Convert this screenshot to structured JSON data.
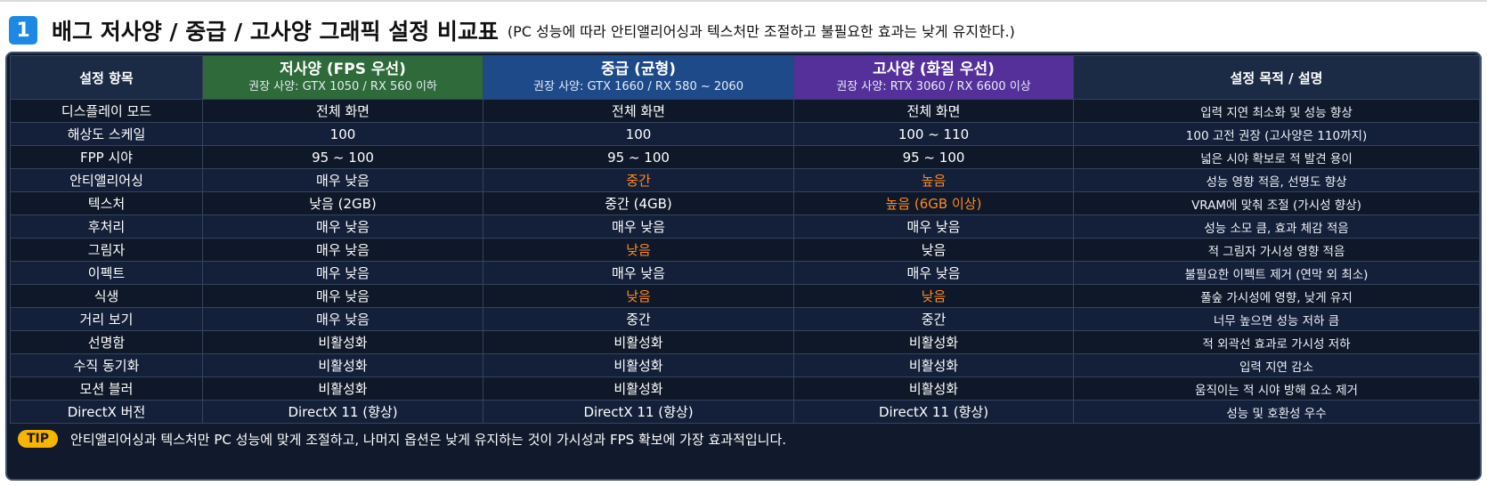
{
  "header": {
    "number": "1",
    "title": "배그 저사양 / 중급 / 고사양 그래픽 설정 비교표",
    "subtitle": "(PC 성능에 따라 안티앨리어싱과 텍스처만 조절하고 불필요한 효과는 낮게 유지한다.)"
  },
  "columns": {
    "item": "설정 항목",
    "low": {
      "title": "저사양 (FPS 우선)",
      "spec": "권장 사양: GTX 1050 / RX 560 이하"
    },
    "mid": {
      "title": "중급 (균형)",
      "spec": "권장 사양: GTX 1660 / RX 580 ~ 2060"
    },
    "high": {
      "title": "고사양 (화질 우선)",
      "spec": "권장 사양: RTX 3060 / RX 6600 이상"
    },
    "purpose": "설정 목적 / 설명"
  },
  "rows": [
    {
      "item": "디스플레이 모드",
      "low": "전체 화면",
      "mid": "전체 화면",
      "high": "전체 화면",
      "purpose": "입력 지연 최소화 및 성능 향상"
    },
    {
      "item": "해상도 스케일",
      "low": "100",
      "mid": "100",
      "high": "100 ~ 110",
      "purpose": "100 고전 권장 (고사양은 110까지)"
    },
    {
      "item": "FPP 시야",
      "low": "95 ~ 100",
      "mid": "95 ~ 100",
      "high": "95 ~ 100",
      "purpose": "넓은 시야 확보로 적 발견 용이"
    },
    {
      "item": "안티앨리어싱",
      "low": "매우 낮음",
      "mid": "중간",
      "high": "높음",
      "purpose": "성능 영향 적음, 선명도 향상"
    },
    {
      "item": "텍스처",
      "low": "낮음 (2GB)",
      "mid": "중간 (4GB)",
      "high": "높음 (6GB 이상)",
      "purpose": "VRAM에 맞춰 조절 (가시성 향상)"
    },
    {
      "item": "후처리",
      "low": "매우 낮음",
      "mid": "매우 낮음",
      "high": "매우 낮음",
      "purpose": "성능 소모 큼, 효과 체감 적음"
    },
    {
      "item": "그림자",
      "low": "매우 낮음",
      "mid": "낮음",
      "high": "낮음",
      "purpose": "적 그림자 가시성 영향 적음"
    },
    {
      "item": "이펙트",
      "low": "매우 낮음",
      "mid": "매우 낮음",
      "high": "매우 낮음",
      "purpose": "불필요한 이펙트 제거 (연막 외 최소)"
    },
    {
      "item": "식생",
      "low": "매우 낮음",
      "mid": "낮음",
      "high": "낮음",
      "purpose": "풀숲 가시성에 영향, 낮게 유지"
    },
    {
      "item": "거리 보기",
      "low": "매우 낮음",
      "mid": "중간",
      "high": "중간",
      "purpose": "너무 높으면 성능 저하 큼"
    },
    {
      "item": "선명함",
      "low": "비활성화",
      "mid": "비활성화",
      "high": "비활성화",
      "purpose": "적 외곽선 효과로 가시성 저하"
    },
    {
      "item": "수직 동기화",
      "low": "비활성화",
      "mid": "비활성화",
      "high": "비활성화",
      "purpose": "입력 지연 감소"
    },
    {
      "item": "모션 블러",
      "low": "비활성화",
      "mid": "비활성화",
      "high": "비활성화",
      "purpose": "움직이는 적 시야 방해 요소 제거"
    },
    {
      "item": "DirectX 버전",
      "low": "DirectX 11 (향상)",
      "mid": "DirectX 11 (향상)",
      "high": "DirectX 11 (향상)",
      "purpose": "성능 및 호환성 우수"
    }
  ],
  "highlight_color": "#ff8a1e",
  "tip": {
    "badge": "TIP",
    "text": "안티앨리어싱과 텍스처만 PC 성능에 맞게 조절하고, 나머지 옵션은 낮게 유지하는 것이 가시성과 FPS 확보에 가장 효과적입니다."
  }
}
